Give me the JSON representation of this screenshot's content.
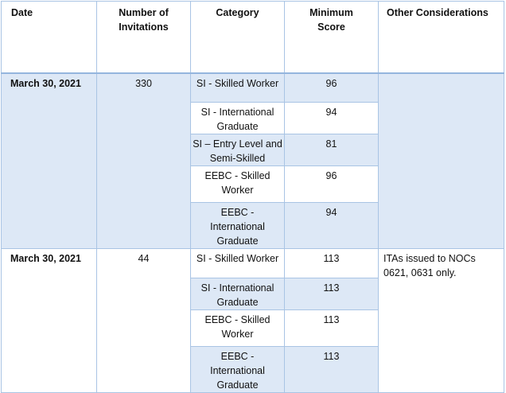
{
  "headers": [
    "Date",
    "Number of\nInvitations",
    "Category",
    "Minimum\nScore",
    "Other Considerations"
  ],
  "groups": [
    {
      "date": "March 30, 2021",
      "invitations": "330",
      "other": "",
      "rows": [
        {
          "category": "SI - Skilled Worker",
          "score": "96"
        },
        {
          "category": "SI - International Graduate",
          "score": "94"
        },
        {
          "category": "SI – Entry Level and Semi-Skilled",
          "score": "81"
        },
        {
          "category": "EEBC - Skilled Worker",
          "score": "96"
        },
        {
          "category": "EEBC - International Graduate",
          "score": "94"
        }
      ]
    },
    {
      "date": "March 30, 2021",
      "invitations": "44",
      "other": "ITAs issued to NOCs 0621, 0631 only.",
      "rows": [
        {
          "category": "SI - Skilled Worker",
          "score": "113"
        },
        {
          "category": "SI - International Graduate",
          "score": "113"
        },
        {
          "category": "EEBC - Skilled Worker",
          "score": "113"
        },
        {
          "category": "EEBC - International Graduate",
          "score": "113"
        }
      ]
    }
  ]
}
